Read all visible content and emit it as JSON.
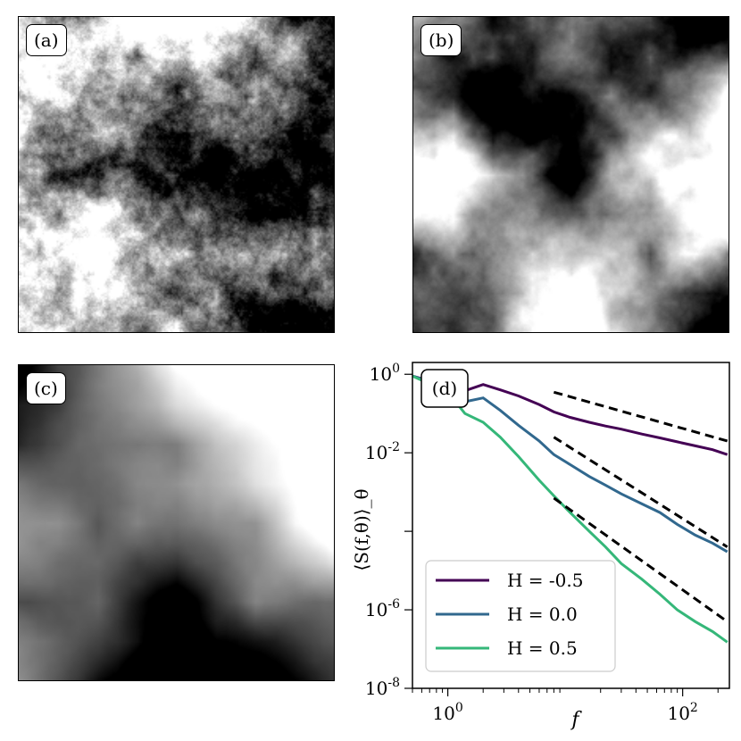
{
  "panels": {
    "a": {
      "label": "(a)",
      "H": -0.5
    },
    "b": {
      "label": "(b)",
      "H": 0.0
    },
    "c": {
      "label": "(c)",
      "H": 0.5
    }
  },
  "chart_data": {
    "type": "line",
    "panel_label": "(d)",
    "xlabel": "f",
    "ylabel": "⟨S(f,θ)⟩_θ",
    "xscale": "log",
    "yscale": "log",
    "xlim": [
      0.5,
      250
    ],
    "ylim": [
      1e-08,
      2
    ],
    "x_ticks": [
      {
        "value": 1,
        "label": "10^0"
      },
      {
        "value": 100,
        "label": "10^2"
      }
    ],
    "y_ticks": [
      {
        "value": 1,
        "label": "10^0"
      },
      {
        "value": 0.01,
        "label": "10^-2"
      },
      {
        "value": 0.0001,
        "label": ""
      },
      {
        "value": 1e-06,
        "label": "10^-6"
      },
      {
        "value": 1e-08,
        "label": "10^-8"
      }
    ],
    "legend_position": "lower-left",
    "series": [
      {
        "name": "H = -0.5",
        "color": "#440154",
        "x": [
          0.5,
          1,
          1.4,
          2,
          2.8,
          4,
          6,
          8,
          11,
          16,
          22,
          30,
          45,
          64,
          90,
          128,
          180,
          240
        ],
        "y": [
          0.9,
          0.5,
          0.38,
          0.55,
          0.4,
          0.28,
          0.17,
          0.11,
          0.08,
          0.06,
          0.048,
          0.04,
          0.03,
          0.024,
          0.019,
          0.015,
          0.012,
          0.009
        ]
      },
      {
        "name": "H = 0.0",
        "color": "#31688e",
        "x": [
          0.5,
          1,
          1.4,
          2,
          2.8,
          4,
          6,
          8,
          11,
          16,
          22,
          30,
          45,
          64,
          90,
          128,
          180,
          240
        ],
        "y": [
          0.9,
          0.45,
          0.2,
          0.25,
          0.12,
          0.05,
          0.02,
          0.009,
          0.005,
          0.0025,
          0.0015,
          0.0009,
          0.0005,
          0.0003,
          0.00015,
          8e-05,
          5e-05,
          3e-05
        ]
      },
      {
        "name": "H = 0.5",
        "color": "#35b779",
        "x": [
          0.5,
          1,
          1.4,
          2,
          2.8,
          4,
          6,
          8,
          11,
          16,
          22,
          30,
          45,
          64,
          90,
          128,
          180,
          240
        ],
        "y": [
          0.9,
          0.35,
          0.1,
          0.06,
          0.025,
          0.008,
          0.002,
          0.0008,
          0.0003,
          0.0001,
          4e-05,
          1.5e-05,
          6e-06,
          2.5e-06,
          1e-06,
          5e-07,
          2.8e-07,
          1.5e-07
        ]
      }
    ],
    "reference_lines": [
      {
        "style": "dashed",
        "color": "#000000",
        "x": [
          8,
          240
        ],
        "y": [
          0.35,
          0.02
        ]
      },
      {
        "style": "dashed",
        "color": "#000000",
        "x": [
          8,
          240
        ],
        "y": [
          0.025,
          4e-05
        ]
      },
      {
        "style": "dashed",
        "color": "#000000",
        "x": [
          8,
          240
        ],
        "y": [
          0.0007,
          5e-07
        ]
      }
    ]
  }
}
